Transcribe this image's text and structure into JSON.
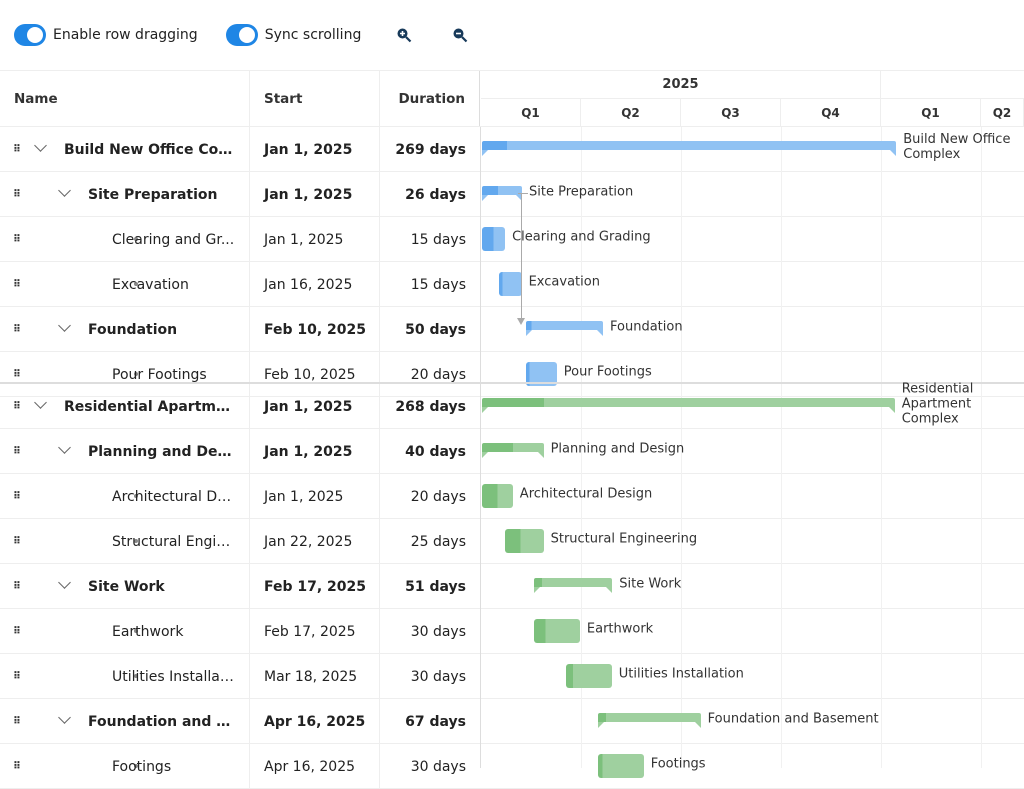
{
  "toolbar": {
    "row_dragging_label": "Enable row dragging",
    "row_dragging_on": true,
    "sync_label": "Sync scrolling",
    "sync_on": true,
    "zoom_in_icon": "zoom-in-icon",
    "zoom_out_icon": "zoom-out-icon"
  },
  "columns": {
    "name": "Name",
    "start": "Start",
    "duration": "Duration"
  },
  "timeline": {
    "years": [
      "2025"
    ],
    "quarters": [
      "Q1",
      "Q2",
      "Q3",
      "Q4",
      "Q1",
      "Q2"
    ]
  },
  "colors": {
    "blue": "#90c2f3",
    "blue_dark": "#62a8ee",
    "green": "#9fd09f",
    "green_dark": "#7cc07c"
  },
  "sections": [
    {
      "color": "blue",
      "rows": [
        {
          "name": "Build New Office Complex",
          "display": "Build New Office Com...",
          "start": "Jan 1, 2025",
          "duration": "269 days",
          "level": 0,
          "parent": true,
          "offset": 0,
          "days": 269,
          "progress": 0.06
        },
        {
          "name": "Site Preparation",
          "display": "Site Preparation",
          "start": "Jan 1, 2025",
          "duration": "26 days",
          "level": 1,
          "parent": true,
          "offset": 0,
          "days": 26,
          "progress": 0.4
        },
        {
          "name": "Clearing and Grading",
          "display": "Clearing and Gr...",
          "start": "Jan 1, 2025",
          "duration": "15 days",
          "level": 2,
          "parent": false,
          "offset": 0,
          "days": 15,
          "progress": 0.5
        },
        {
          "name": "Excavation",
          "display": "Excavation",
          "start": "Jan 16, 2025",
          "duration": "15 days",
          "level": 2,
          "parent": false,
          "offset": 15,
          "days": 15,
          "progress": 0.15
        },
        {
          "name": "Foundation",
          "display": "Foundation",
          "start": "Feb 10, 2025",
          "duration": "50 days",
          "level": 1,
          "parent": true,
          "offset": 40,
          "days": 50,
          "progress": 0.07
        },
        {
          "name": "Pour Footings",
          "display": "Pour Footings",
          "start": "Feb 10, 2025",
          "duration": "20 days",
          "level": 2,
          "parent": false,
          "offset": 40,
          "days": 20,
          "progress": 0.12
        }
      ]
    },
    {
      "color": "green",
      "rows": [
        {
          "name": "Residential Apartment Complex",
          "display": "Residential Apartment...",
          "start": "Jan 1, 2025",
          "duration": "268 days",
          "level": 0,
          "parent": true,
          "offset": 0,
          "days": 268,
          "progress": 0.15
        },
        {
          "name": "Planning and Design",
          "display": "Planning and Desi...",
          "start": "Jan 1, 2025",
          "duration": "40 days",
          "level": 1,
          "parent": true,
          "offset": 0,
          "days": 40,
          "progress": 0.5
        },
        {
          "name": "Architectural Design",
          "display": "Architectural De...",
          "start": "Jan 1, 2025",
          "duration": "20 days",
          "level": 2,
          "parent": false,
          "offset": 0,
          "days": 20,
          "progress": 0.5
        },
        {
          "name": "Structural Engineering",
          "display": "Structural Engin...",
          "start": "Jan 22, 2025",
          "duration": "25 days",
          "level": 2,
          "parent": false,
          "offset": 21,
          "days": 25,
          "progress": 0.4
        },
        {
          "name": "Site Work",
          "display": "Site Work",
          "start": "Feb 17, 2025",
          "duration": "51 days",
          "level": 1,
          "parent": true,
          "offset": 47,
          "days": 51,
          "progress": 0.1
        },
        {
          "name": "Earthwork",
          "display": "Earthwork",
          "start": "Feb 17, 2025",
          "duration": "30 days",
          "level": 2,
          "parent": false,
          "offset": 47,
          "days": 30,
          "progress": 0.25
        },
        {
          "name": "Utilities Installation",
          "display": "Utilities Installat...",
          "start": "Mar 18, 2025",
          "duration": "30 days",
          "level": 2,
          "parent": false,
          "offset": 76,
          "days": 30,
          "progress": 0.15
        },
        {
          "name": "Foundation and Basement",
          "display": "Foundation and Ba...",
          "start": "Apr 16, 2025",
          "duration": "67 days",
          "level": 1,
          "parent": true,
          "offset": 105,
          "days": 67,
          "progress": 0.08
        },
        {
          "name": "Footings",
          "display": "Footings",
          "start": "Apr 16, 2025",
          "duration": "30 days",
          "level": 2,
          "parent": false,
          "offset": 105,
          "days": 30,
          "progress": 0.1
        }
      ]
    }
  ]
}
